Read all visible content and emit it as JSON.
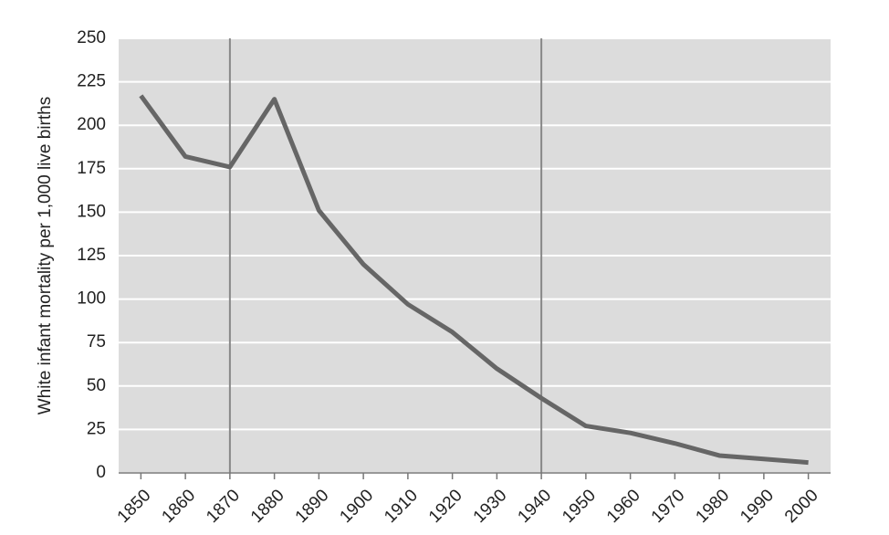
{
  "chart_data": {
    "type": "line",
    "y_label": "White infant mortality per 1,000 live births",
    "x": [
      1850,
      1860,
      1870,
      1880,
      1890,
      1900,
      1910,
      1920,
      1930,
      1940,
      1950,
      1960,
      1970,
      1980,
      1990,
      2000
    ],
    "series": [
      {
        "name": "White infant mortality",
        "color": "#666666",
        "values": [
          217,
          182,
          176,
          215,
          151,
          120,
          97,
          81,
          60,
          43,
          27,
          23,
          17,
          10,
          8,
          6
        ]
      }
    ],
    "xlim": [
      1845,
      2005
    ],
    "xticks": [
      1850,
      1860,
      1870,
      1880,
      1890,
      1900,
      1910,
      1920,
      1930,
      1940,
      1950,
      1960,
      1970,
      1980,
      1990,
      2000
    ],
    "ylim": [
      0,
      250
    ],
    "yticks": [
      0,
      25,
      50,
      75,
      100,
      125,
      150,
      175,
      200,
      225,
      250
    ],
    "reference_lines": [
      1870,
      1940
    ],
    "grid": true,
    "background": "#dcdcdc"
  }
}
